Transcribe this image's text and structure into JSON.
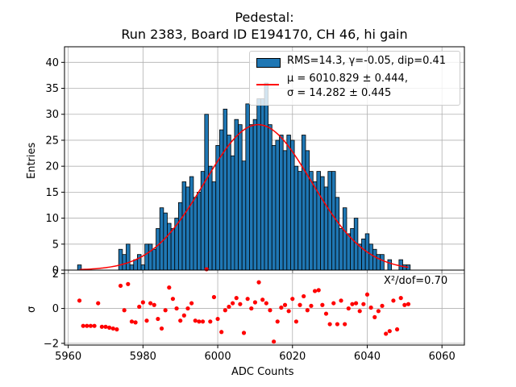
{
  "chart_data": [
    {
      "panel": "histogram",
      "type": "bar",
      "title_line1": "Pedestal:",
      "title_line2": "Run 2383, Board ID E194170, CH 46, hi gain",
      "xlabel": "",
      "ylabel": "Entries",
      "xlim": [
        5959,
        6066
      ],
      "ylim": [
        0,
        43
      ],
      "yticks": [
        0,
        5,
        10,
        15,
        20,
        25,
        30,
        35,
        40
      ],
      "grid": true,
      "bin_width": 1,
      "bins": [
        5963,
        5964,
        5965,
        5966,
        5967,
        5968,
        5969,
        5970,
        5971,
        5972,
        5973,
        5974,
        5975,
        5976,
        5977,
        5978,
        5979,
        5980,
        5981,
        5982,
        5983,
        5984,
        5985,
        5986,
        5987,
        5988,
        5989,
        5990,
        5991,
        5992,
        5993,
        5994,
        5995,
        5996,
        5997,
        5998,
        5999,
        6000,
        6001,
        6002,
        6003,
        6004,
        6005,
        6006,
        6007,
        6008,
        6009,
        6010,
        6011,
        6012,
        6013,
        6014,
        6015,
        6016,
        6017,
        6018,
        6019,
        6020,
        6021,
        6022,
        6023,
        6024,
        6025,
        6026,
        6027,
        6028,
        6029,
        6030,
        6031,
        6032,
        6033,
        6034,
        6035,
        6036,
        6037,
        6038,
        6039,
        6040,
        6041,
        6042,
        6043,
        6044,
        6045,
        6046,
        6047,
        6048,
        6049,
        6050,
        6051
      ],
      "values": [
        1,
        0,
        0,
        0,
        0,
        0,
        0,
        0,
        0,
        0,
        0,
        4,
        3,
        5,
        1,
        2,
        3,
        1,
        5,
        5,
        4,
        8,
        12,
        11,
        9,
        8,
        10,
        13,
        17,
        16,
        18,
        14,
        15,
        19,
        30,
        20,
        17,
        24,
        27,
        31,
        26,
        22,
        29,
        28,
        21,
        32,
        28,
        29,
        33,
        33,
        36,
        28,
        24,
        25,
        26,
        23,
        26,
        25,
        20,
        19,
        26,
        23,
        19,
        17,
        19,
        18,
        16,
        19,
        19,
        14,
        8,
        12,
        7,
        8,
        10,
        5,
        6,
        7,
        5,
        4,
        3,
        3,
        0,
        2,
        0,
        0,
        2,
        1,
        1
      ],
      "series_fit": {
        "name_line1": "μ = 6010.829 ± 0.444,",
        "name_line2": "σ = 14.282 ± 0.445",
        "mu": 6010.829,
        "sigma": 14.282,
        "amplitude": 28,
        "x_range": [
          5963,
          6051
        ],
        "color": "#ff0000"
      },
      "legend": {
        "hist_label": "RMS=14.3, γ=-0.05, dip=0.41",
        "position": "top-right"
      },
      "bar_color": "#1f77b4"
    },
    {
      "panel": "residuals",
      "type": "scatter",
      "xlabel": "ADC Counts",
      "ylabel": "σ",
      "xlim": [
        5959,
        6066
      ],
      "ylim": [
        -2.1,
        2.2
      ],
      "yticks": [
        -2,
        0,
        2
      ],
      "xticks": [
        5960,
        5980,
        6000,
        6020,
        6040,
        6060
      ],
      "grid": true,
      "annotation": "Χ²/dof=0.70",
      "point_color": "#ff0000",
      "x": [
        5963,
        5964,
        5965,
        5966,
        5967,
        5968,
        5969,
        5970,
        5971,
        5972,
        5973,
        5974,
        5975,
        5976,
        5977,
        5978,
        5979,
        5980,
        5981,
        5982,
        5983,
        5984,
        5985,
        5986,
        5987,
        5988,
        5989,
        5990,
        5991,
        5992,
        5993,
        5994,
        5995,
        5996,
        5997,
        5998,
        5999,
        6000,
        6001,
        6002,
        6003,
        6004,
        6005,
        6006,
        6007,
        6008,
        6009,
        6010,
        6011,
        6012,
        6013,
        6014,
        6015,
        6016,
        6017,
        6018,
        6019,
        6020,
        6021,
        6022,
        6023,
        6024,
        6025,
        6026,
        6027,
        6028,
        6029,
        6030,
        6031,
        6032,
        6033,
        6034,
        6035,
        6036,
        6037,
        6038,
        6039,
        6040,
        6041,
        6042,
        6043,
        6044,
        6045,
        6046,
        6047,
        6048,
        6049,
        6050,
        6051
      ],
      "y": [
        0.45,
        -1.0,
        -1.0,
        -1.0,
        -1.0,
        0.3,
        -1.05,
        -1.05,
        -1.1,
        -1.15,
        -1.2,
        1.3,
        -0.1,
        1.4,
        -0.75,
        -0.8,
        0.1,
        0.35,
        -0.7,
        0.3,
        0.2,
        -0.6,
        -1.15,
        -0.1,
        1.2,
        0.55,
        0.0,
        -0.7,
        -0.4,
        0.0,
        0.3,
        -0.7,
        -0.75,
        -0.75,
        2.25,
        -0.75,
        0.65,
        -0.6,
        -1.35,
        -0.1,
        0.1,
        0.3,
        0.6,
        0.25,
        -1.4,
        0.55,
        0.0,
        0.35,
        1.5,
        0.5,
        0.3,
        -0.1,
        -1.9,
        -0.75,
        0.05,
        0.2,
        -0.15,
        0.55,
        -0.75,
        0.2,
        0.7,
        -0.1,
        0.15,
        1.0,
        1.05,
        0.2,
        -0.3,
        -0.9,
        0.3,
        -0.9,
        0.45,
        -0.9,
        0.0,
        0.25,
        0.3,
        -0.15,
        0.25,
        0.8,
        0.05,
        -0.5,
        -0.15,
        0.15,
        -1.45,
        -1.3,
        0.45,
        -1.2,
        0.6,
        0.2,
        0.25
      ]
    }
  ]
}
